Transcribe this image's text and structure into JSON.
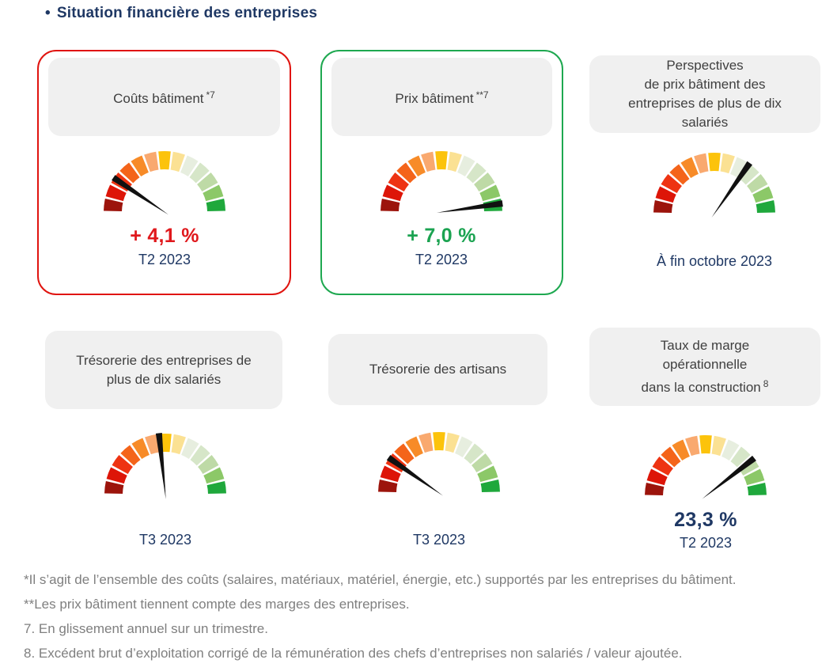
{
  "title": {
    "bullet": "•",
    "text": "Situation financière des entreprises"
  },
  "colors": {
    "navy": "#1f3864",
    "header_bg": "#f0f0f0",
    "header_text": "#3f3f3f",
    "footnote_gray": "#7f7f7f",
    "red_accent": "#e0181c",
    "green_accent": "#1ba351",
    "needle": "#111111"
  },
  "gauge": {
    "segment_colors": [
      "#9c140c",
      "#dd1508",
      "#ee3312",
      "#f4641a",
      "#f78b28",
      "#f9a96f",
      "#fcc30b",
      "#fbe193",
      "#e7eedf",
      "#d6e6c8",
      "#bedaa6",
      "#8cc868",
      "#1fa83c"
    ]
  },
  "cards": [
    {
      "id": "couts-batiment",
      "header": "Coûts bâtiment",
      "header_sup": "*7",
      "border_color": "#e0140f",
      "needle_angle_deg": 146,
      "value": "+ 4,1 %",
      "value_color": "#e0181c",
      "date": "T2 2023"
    },
    {
      "id": "prix-batiment",
      "header": "Prix bâtiment",
      "header_sup": "**7",
      "border_color": "#1ea850",
      "needle_angle_deg": 8,
      "value": "+ 7,0 %",
      "value_color": "#1ba351",
      "date": "T2 2023"
    },
    {
      "id": "perspectives-prix-batiment",
      "header": "Perspectives\nde prix bâtiment des\nentreprises de plus de dix\nsalariés",
      "needle_angle_deg": 55,
      "date": "À fin octobre 2023"
    },
    {
      "id": "tresorerie-entreprises",
      "header": "Trésorerie des entreprises de\nplus de dix salariés",
      "needle_angle_deg": 96,
      "date": "T3 2023"
    },
    {
      "id": "tresorerie-artisans",
      "header": "Trésorerie des artisans",
      "needle_angle_deg": 145,
      "date": "T3 2023"
    },
    {
      "id": "taux-de-marge",
      "header": "Taux de marge\nopérationnelle\ndans la construction",
      "header_sup": "8",
      "needle_angle_deg": 38,
      "value": "23,3 %",
      "value_color": "#1f3864",
      "date": "T2 2023"
    }
  ],
  "footnotes": [
    "*Il s’agit de l’ensemble des coûts (salaires, matériaux, matériel, énergie, etc.) supportés par les entreprises du bâtiment.",
    "**Les prix bâtiment tiennent compte des marges des entreprises.",
    "7. En glissement annuel sur un trimestre.",
    "8. Excédent brut d’exploitation corrigé de la rémunération des chefs d’entreprises non salariés / valeur ajoutée."
  ],
  "chart_data": [
    {
      "type": "gauge",
      "title": "Coûts bâtiment *7",
      "value_label": "+ 4,1 %",
      "period": "T2 2023",
      "needle_angle_deg": 146,
      "needle_fraction_0red_1green": 0.19,
      "scale": "13-segment semicircle, dark red (left, unfavorable) to green (right, favorable)"
    },
    {
      "type": "gauge",
      "title": "Prix bâtiment **7",
      "value_label": "+ 7,0 %",
      "period": "T2 2023",
      "needle_angle_deg": 8,
      "needle_fraction_0red_1green": 0.96
    },
    {
      "type": "gauge",
      "title": "Perspectives de prix bâtiment des entreprises de plus de dix salariés",
      "value_label": null,
      "period": "À fin octobre 2023",
      "needle_angle_deg": 55,
      "needle_fraction_0red_1green": 0.69
    },
    {
      "type": "gauge",
      "title": "Trésorerie des entreprises de plus de dix salariés",
      "value_label": null,
      "period": "T3 2023",
      "needle_angle_deg": 96,
      "needle_fraction_0red_1green": 0.47
    },
    {
      "type": "gauge",
      "title": "Trésorerie des artisans",
      "value_label": null,
      "period": "T3 2023",
      "needle_angle_deg": 145,
      "needle_fraction_0red_1green": 0.19
    },
    {
      "type": "gauge",
      "title": "Taux de marge opérationnelle dans la construction 8",
      "value_label": "23,3 %",
      "period": "T2 2023",
      "needle_angle_deg": 38,
      "needle_fraction_0red_1green": 0.79
    }
  ]
}
